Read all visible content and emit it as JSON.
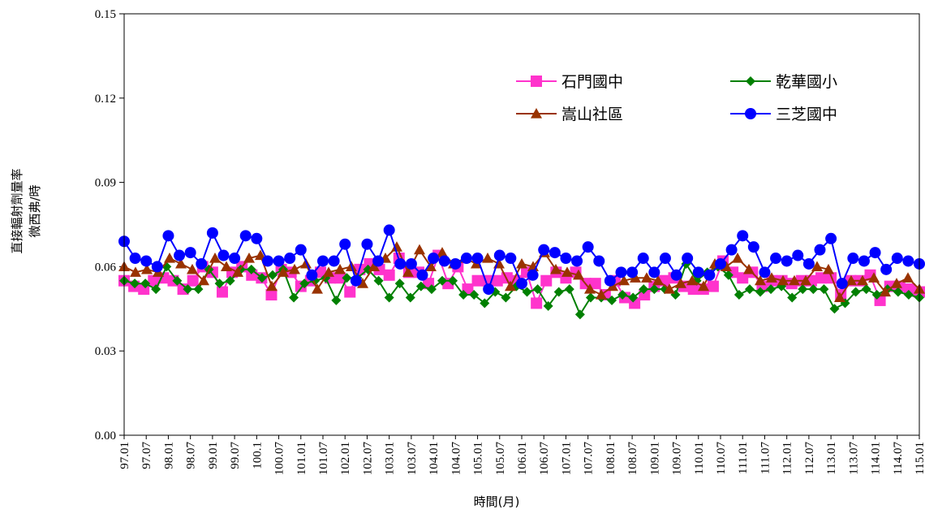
{
  "chart_data": {
    "type": "line",
    "title": "",
    "xlabel": "時間(月)",
    "ylabel": [
      "直接輻射劑量率",
      "微西弗/時"
    ],
    "ylim": [
      0.0,
      0.15
    ],
    "yticks": [
      "0.00",
      "0.03",
      "0.06",
      "0.09",
      "0.12",
      "0.15"
    ],
    "xtick_labels": [
      "97.01",
      "97.07",
      "98.01",
      "98.07",
      "99.01",
      "99.07",
      "100.1",
      "100.07",
      "101.01",
      "101.07",
      "102.01",
      "102.07",
      "103.01",
      "103.07",
      "104.01",
      "104.07",
      "105.01",
      "105.07",
      "106.01",
      "106.07",
      "107.01",
      "107.07",
      "108.01",
      "108.07",
      "109.01",
      "109.07",
      "110.01",
      "110.07",
      "111.01",
      "111.07",
      "112.01",
      "112.07",
      "113.01",
      "113.07",
      "114.01",
      "114.07",
      "115.01"
    ],
    "grid": false,
    "legend_position": "top-right",
    "series": [
      {
        "name": "石門國中",
        "color": "#ff33cc",
        "marker": "square",
        "values": [
          0.055,
          0.053,
          0.052,
          0.055,
          0.056,
          0.055,
          0.052,
          0.055,
          0.06,
          0.058,
          0.051,
          0.058,
          0.06,
          0.057,
          0.056,
          0.05,
          0.059,
          0.058,
          0.053,
          0.055,
          0.058,
          0.056,
          0.056,
          0.051,
          0.059,
          0.061,
          0.059,
          0.057,
          0.063,
          0.058,
          0.058,
          0.054,
          0.064,
          0.054,
          0.06,
          0.052,
          0.055,
          0.055,
          0.055,
          0.056,
          0.055,
          0.058,
          0.047,
          0.055,
          0.058,
          0.056,
          0.058,
          0.054,
          0.054,
          0.05,
          0.055,
          0.049,
          0.047,
          0.05,
          0.053,
          0.055,
          0.056,
          0.053,
          0.052,
          0.052,
          0.053,
          0.062,
          0.058,
          0.056,
          0.058,
          0.053,
          0.055,
          0.055,
          0.054,
          0.055,
          0.055,
          0.056,
          0.056,
          0.05,
          0.055,
          0.055,
          0.057,
          0.048,
          0.053,
          0.053,
          0.052,
          0.051
        ]
      },
      {
        "name": "乾華國小",
        "color": "#008000",
        "marker": "diamond",
        "values": [
          0.055,
          0.054,
          0.054,
          0.052,
          0.06,
          0.055,
          0.052,
          0.052,
          0.059,
          0.054,
          0.055,
          0.059,
          0.059,
          0.056,
          0.057,
          0.059,
          0.049,
          0.054,
          0.055,
          0.056,
          0.048,
          0.056,
          0.056,
          0.059,
          0.055,
          0.049,
          0.054,
          0.049,
          0.053,
          0.052,
          0.055,
          0.055,
          0.05,
          0.05,
          0.047,
          0.051,
          0.049,
          0.053,
          0.051,
          0.052,
          0.046,
          0.051,
          0.052,
          0.043,
          0.049,
          0.049,
          0.048,
          0.05,
          0.049,
          0.052,
          0.052,
          0.052,
          0.05,
          0.061,
          0.055,
          0.058,
          0.06,
          0.057,
          0.05,
          0.052,
          0.051,
          0.052,
          0.053,
          0.049,
          0.052,
          0.052,
          0.052,
          0.045,
          0.047,
          0.051,
          0.052,
          0.05,
          0.052,
          0.051,
          0.05,
          0.049
        ]
      },
      {
        "name": "嵩山社區",
        "color": "#993300",
        "marker": "triangle",
        "values": [
          0.06,
          0.058,
          0.059,
          0.058,
          0.063,
          0.061,
          0.059,
          0.055,
          0.063,
          0.06,
          0.058,
          0.063,
          0.064,
          0.053,
          0.058,
          0.059,
          0.061,
          0.052,
          0.058,
          0.059,
          0.06,
          0.054,
          0.06,
          0.063,
          0.067,
          0.058,
          0.066,
          0.06,
          0.065,
          0.061,
          0.063,
          0.061,
          0.063,
          0.061,
          0.053,
          0.061,
          0.06,
          0.065,
          0.059,
          0.058,
          0.057,
          0.052,
          0.05,
          0.053,
          0.055,
          0.056,
          0.056,
          0.055,
          0.052,
          0.054,
          0.055,
          0.053,
          0.061,
          0.06,
          0.063,
          0.059,
          0.055,
          0.056,
          0.055,
          0.055,
          0.055,
          0.06,
          0.059,
          0.049,
          0.055,
          0.055,
          0.056,
          0.051,
          0.054,
          0.056,
          0.052
        ]
      },
      {
        "name": "三芝國中",
        "color": "#0000ff",
        "marker": "circle",
        "values": [
          0.069,
          0.063,
          0.062,
          0.06,
          0.071,
          0.064,
          0.065,
          0.061,
          0.072,
          0.064,
          0.063,
          0.071,
          0.07,
          0.062,
          0.062,
          0.063,
          0.066,
          0.057,
          0.062,
          0.062,
          0.068,
          0.055,
          0.068,
          0.062,
          0.073,
          0.061,
          0.061,
          0.057,
          0.063,
          0.062,
          0.061,
          0.063,
          0.063,
          0.052,
          0.064,
          0.063,
          0.054,
          0.057,
          0.066,
          0.065,
          0.063,
          0.062,
          0.067,
          0.062,
          0.055,
          0.058,
          0.058,
          0.063,
          0.058,
          0.063,
          0.057,
          0.063,
          0.058,
          0.057,
          0.061,
          0.066,
          0.071,
          0.067,
          0.058,
          0.063,
          0.062,
          0.064,
          0.061,
          0.066,
          0.07,
          0.054,
          0.063,
          0.062,
          0.065,
          0.059,
          0.063,
          0.062,
          0.061
        ]
      }
    ]
  }
}
